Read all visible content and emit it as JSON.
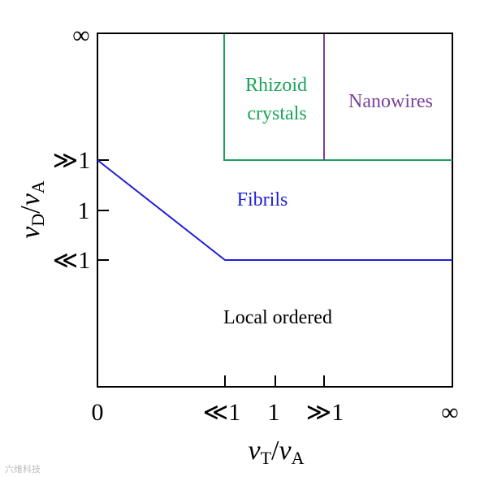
{
  "colors": {
    "axis": "#000000",
    "fibrils_boundary": "#1f1fd6",
    "rhizoid": "#1aa35a",
    "nanowires": "#7b3f98"
  },
  "axes": {
    "x_title": {
      "var": "v",
      "sub1": "T",
      "slash": "/",
      "var2": "v",
      "sub2": "A"
    },
    "y_title": {
      "var": "v",
      "sub1": "D",
      "slash": "/",
      "var2": "v",
      "sub2": "A"
    },
    "x_ticks": [
      "0",
      "≪1",
      "1",
      "≫1",
      "∞"
    ],
    "y_ticks": [
      "∞",
      "≫1",
      "1",
      "≪1"
    ]
  },
  "regions": {
    "rhizoid_line1": "Rhizoid",
    "rhizoid_line2": "crystals",
    "nanowires": "Nanowires",
    "fibrils": "Fibrils",
    "local_ordered": "Local ordered"
  },
  "watermark": "六维科技"
}
